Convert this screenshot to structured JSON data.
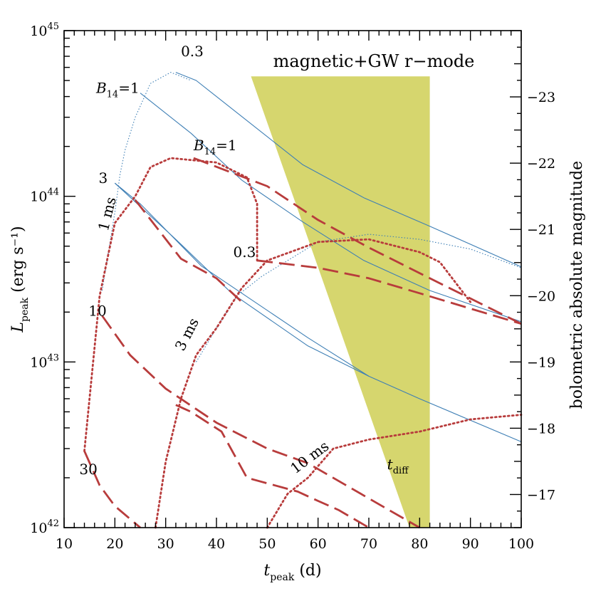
{
  "chart_data": {
    "type": "line",
    "title": "magnetic+GW r−mode",
    "xlabel": {
      "main": "t",
      "sub": "peak",
      "rest": " (d)"
    },
    "ylabel": {
      "main": "L",
      "sub": "peak",
      "rest": " (erg s⁻¹)"
    },
    "y2label": "bolometric absolute magnitude",
    "xlim": [
      10,
      100
    ],
    "ylim": [
      1e+42,
      1e+45
    ],
    "yscale": "log",
    "y2lim": [
      -16.5,
      -24.0
    ],
    "xticks": [
      "10",
      "20",
      "30",
      "40",
      "50",
      "60",
      "70",
      "80",
      "90",
      "100"
    ],
    "yticks": [
      {
        "value": 1e+42,
        "base": "10",
        "exp": "42"
      },
      {
        "value": 1e+43,
        "base": "10",
        "exp": "43"
      },
      {
        "value": 1e+44,
        "base": "10",
        "exp": "44"
      },
      {
        "value": 1e+45,
        "base": "10",
        "exp": "45"
      }
    ],
    "y2ticks": [
      "−17",
      "−18",
      "−19",
      "−20",
      "−21",
      "−22",
      "−23"
    ],
    "region": {
      "name": "t_diff",
      "color": "#d6d66e",
      "points": [
        [
          46.8,
          5.3e+44
        ],
        [
          82,
          5.3e+44
        ],
        [
          82,
          1e+42
        ],
        [
          78,
          1e+42
        ]
      ]
    },
    "series": [
      {
        "style": "blue-thin",
        "color": "#3e7fb5",
        "points": [
          [
            25,
            4.2e+44
          ],
          [
            35,
            2.4e+44
          ],
          [
            45,
            1.25e+44
          ],
          [
            57,
            7e+43
          ],
          [
            69,
            4.1e+43
          ],
          [
            82,
            2.7e+43
          ],
          [
            100,
            1.75e+43
          ]
        ]
      },
      {
        "style": "blue-thin",
        "color": "#3e7fb5",
        "points": [
          [
            32,
            5.6e+44
          ],
          [
            36,
            5e+44
          ],
          [
            44,
            3.2e+44
          ],
          [
            57,
            1.55e+44
          ],
          [
            69,
            9.8e+43
          ],
          [
            82,
            6.6e+43
          ],
          [
            100,
            3.75e+43
          ]
        ]
      },
      {
        "style": "blue-thin",
        "color": "#3e7fb5",
        "points": [
          [
            20,
            1.2e+44
          ],
          [
            32,
            5.5e+43
          ],
          [
            43,
            2.6e+43
          ],
          [
            58,
            1.25e+43
          ],
          [
            70,
            8.2e+42
          ],
          [
            80,
            6e+42
          ],
          [
            100,
            3.3e+42
          ]
        ]
      },
      {
        "style": "blue-thin",
        "color": "#3e7fb5",
        "points": [
          [
            20,
            1.2e+44
          ],
          [
            25,
            9e+43
          ],
          [
            37,
            3.8e+43
          ],
          [
            58,
            1.4e+43
          ],
          [
            70,
            8.2e+42
          ]
        ]
      },
      {
        "style": "blue-dotted",
        "color": "#3e7fb5",
        "points": [
          [
            17.5,
            2.7e+43
          ],
          [
            20,
            8e+43
          ],
          [
            21,
            1.35e+44
          ],
          [
            22,
            1.9e+44
          ],
          [
            24,
            3e+44
          ],
          [
            27,
            4.8e+44
          ],
          [
            31,
            5.6e+44
          ],
          [
            35,
            5e+44
          ]
        ]
      },
      {
        "style": "blue-dotted",
        "color": "#3e7fb5",
        "points": [
          [
            36,
            1e+43
          ],
          [
            40,
            1.6e+43
          ],
          [
            44,
            2.5e+43
          ],
          [
            49,
            3.3e+43
          ],
          [
            60,
            5.3e+43
          ],
          [
            70,
            5.9e+43
          ],
          [
            80,
            5.5e+43
          ],
          [
            90,
            4.8e+43
          ],
          [
            100,
            3.7e+43
          ]
        ]
      },
      {
        "style": "red-dashed",
        "color": "#b83c3c",
        "points": [
          [
            35.5,
            1.7e+44
          ],
          [
            50,
            1.15e+44
          ],
          [
            60,
            7.2e+43
          ],
          [
            70,
            4.9e+43
          ],
          [
            82,
            3.2e+43
          ],
          [
            100,
            1.7e+43
          ]
        ]
      },
      {
        "style": "red-dashed",
        "color": "#b83c3c",
        "points": [
          [
            48,
            4.1e+43
          ],
          [
            60,
            3.7e+43
          ],
          [
            70,
            3.2e+43
          ],
          [
            80,
            2.6e+43
          ],
          [
            90,
            2.1e+43
          ],
          [
            100,
            1.7e+43
          ]
        ]
      },
      {
        "style": "red-dashed",
        "color": "#b83c3c",
        "points": [
          [
            24,
            9.5e+43
          ],
          [
            33,
            4.2e+43
          ],
          [
            40,
            3.2e+43
          ],
          [
            45,
            2.3e+43
          ]
        ]
      },
      {
        "style": "red-dashed",
        "color": "#b83c3c",
        "points": [
          [
            17.5,
            1.9e+43
          ],
          [
            23,
            1.1e+43
          ],
          [
            30,
            6.9e+42
          ],
          [
            40,
            4.3e+42
          ],
          [
            50,
            3e+42
          ],
          [
            58,
            2.45e+42
          ],
          [
            70,
            1.5e+42
          ],
          [
            80,
            1e+42
          ]
        ]
      },
      {
        "style": "red-dashed",
        "color": "#b83c3c",
        "points": [
          [
            14,
            2.9e+42
          ],
          [
            17,
            1.8e+42
          ],
          [
            20,
            1.35e+42
          ],
          [
            25,
            1e+42
          ]
        ]
      },
      {
        "style": "red-dashed",
        "color": "#b83c3c",
        "points": [
          [
            32,
            5.5e+42
          ],
          [
            35,
            5e+42
          ],
          [
            41,
            3.8e+42
          ],
          [
            46,
            2e+42
          ],
          [
            56,
            1.65e+42
          ],
          [
            60,
            1.45e+42
          ],
          [
            64,
            1.28e+42
          ],
          [
            70,
            1e+42
          ]
        ]
      },
      {
        "style": "red-dotted",
        "color": "#b83c3c",
        "points": [
          [
            14,
            2.9e+42
          ],
          [
            15,
            6e+42
          ],
          [
            17,
            2.5e+43
          ],
          [
            20,
            6.9e+43
          ],
          [
            24,
            1e+44
          ],
          [
            27,
            1.5e+44
          ],
          [
            31,
            1.7e+44
          ],
          [
            40,
            1.6e+44
          ],
          [
            46,
            1.3e+44
          ],
          [
            48,
            9e+43
          ],
          [
            48,
            4.1e+43
          ]
        ]
      },
      {
        "style": "red-dotted",
        "color": "#b83c3c",
        "points": [
          [
            28,
            1e+42
          ],
          [
            30,
            2.5e+42
          ],
          [
            33,
            6e+42
          ],
          [
            36,
            1.1e+43
          ],
          [
            40,
            1.6e+43
          ],
          [
            45,
            2.8e+43
          ],
          [
            50,
            4.1e+43
          ],
          [
            60,
            5.3e+43
          ],
          [
            70,
            5.5e+43
          ],
          [
            80,
            4.6e+43
          ],
          [
            84,
            4e+43
          ],
          [
            90,
            2.3e+43
          ]
        ]
      },
      {
        "style": "red-dotted",
        "color": "#b83c3c",
        "points": [
          [
            50,
            1e+42
          ],
          [
            54,
            1.6e+42
          ],
          [
            58,
            2e+42
          ],
          [
            63,
            3e+42
          ],
          [
            70,
            3.4e+42
          ],
          [
            80,
            3.8e+42
          ],
          [
            90,
            4.5e+42
          ],
          [
            100,
            4.8e+42
          ]
        ]
      }
    ],
    "annotations": [
      {
        "text": "0.3",
        "x": 33,
        "y": 7e+44,
        "rotate": 0
      },
      {
        "text": "B",
        "sub": "14",
        "rest": "=1",
        "x": 16.3,
        "y": 4.2e+44,
        "rotate": 0
      },
      {
        "text": "B",
        "sub": "14",
        "rest": "=1",
        "x": 35.5,
        "y": 1.9e+44,
        "rotate": 0
      },
      {
        "text": "3",
        "x": 16.8,
        "y": 1.2e+44,
        "rotate": 0
      },
      {
        "text": "0.3",
        "x": 43.3,
        "y": 4.3e+43,
        "rotate": 0
      },
      {
        "text": "10",
        "x": 14.8,
        "y": 1.9e+43,
        "rotate": 0
      },
      {
        "text": "30",
        "x": 13,
        "y": 2.1e+42,
        "rotate": 0
      },
      {
        "text": "1 ms",
        "x": 18.6,
        "y": 6.1e+43,
        "rotate": -76
      },
      {
        "text": "3 ms",
        "x": 33.5,
        "y": 1.15e+43,
        "rotate": -63
      },
      {
        "text": "10 ms",
        "x": 55.5,
        "y": 2.1e+42,
        "rotate": -37
      },
      {
        "text": "t",
        "sub": "diff",
        "rest": "",
        "x": 73.6,
        "y": 2.25e+42,
        "rotate": 0
      }
    ]
  }
}
